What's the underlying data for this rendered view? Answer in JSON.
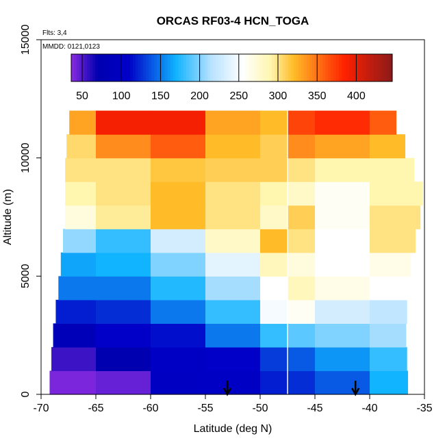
{
  "chart_data": {
    "type": "heatmap",
    "title": "ORCAS RF03-4 HCN_TOGA",
    "notes": [
      "Flts: 3,4",
      "MMDD: 0121,0123"
    ],
    "xlabel": "Latitude (deg N)",
    "ylabel": "Altitude (m)",
    "xlim": [
      -70,
      -35
    ],
    "ylim": [
      0,
      15000
    ],
    "x_ticks": [
      -70,
      -65,
      -60,
      -55,
      -50,
      -45,
      -40,
      -35
    ],
    "y_ticks": [
      0,
      5000,
      10000,
      15000
    ],
    "colorbar": {
      "range": [
        36,
        446
      ],
      "ticks": [
        50,
        100,
        150,
        200,
        250,
        300,
        350,
        400
      ],
      "stops": [
        {
          "v": 36,
          "color": "#8b2be2"
        },
        {
          "v": 70,
          "color": "#0000b0"
        },
        {
          "v": 110,
          "color": "#0000c8"
        },
        {
          "v": 170,
          "color": "#10b4ff"
        },
        {
          "v": 215,
          "color": "#b8e2ff"
        },
        {
          "v": 255,
          "color": "#ffffff"
        },
        {
          "v": 290,
          "color": "#fff6b0"
        },
        {
          "v": 320,
          "color": "#ffbc28"
        },
        {
          "v": 385,
          "color": "#ff2000"
        },
        {
          "v": 446,
          "color": "#8b1a1a"
        }
      ]
    },
    "vertical_line_lat": -47.5,
    "arrows_lat": [
      -53,
      -41.3
    ],
    "grid_lat_edges": [
      -70,
      -65,
      -60,
      -55,
      -50,
      -47.5,
      -45,
      -40,
      -35
    ],
    "grid_alt_edges": [
      0,
      1000,
      2000,
      3000,
      4000,
      5000,
      6000,
      7000,
      8000,
      9000,
      10000,
      11000,
      12000
    ],
    "grid_values": [
      [
        40,
        45,
        100,
        105,
        120,
        125,
        140,
        170
      ],
      [
        55,
        70,
        105,
        110,
        130,
        140,
        160,
        180
      ],
      [
        85,
        110,
        115,
        150,
        180,
        190,
        200,
        210
      ],
      [
        120,
        125,
        150,
        180,
        250,
        260,
        230,
        220
      ],
      [
        150,
        150,
        175,
        210,
        255,
        285,
        265,
        255
      ],
      [
        165,
        170,
        200,
        240,
        285,
        270,
        255,
        265
      ],
      [
        205,
        180,
        230,
        280,
        320,
        300,
        255,
        300
      ],
      [
        270,
        295,
        320,
        300,
        280,
        310,
        260,
        300
      ],
      [
        290,
        300,
        320,
        300,
        290,
        280,
        260,
        290
      ],
      [
        300,
        300,
        315,
        310,
        310,
        300,
        290,
        290
      ],
      [
        305,
        340,
        360,
        320,
        310,
        340,
        330,
        320
      ],
      [
        330,
        390,
        390,
        330,
        320,
        370,
        380,
        360
      ]
    ],
    "right_edge_alt": [
      {
        "alt": 0,
        "lat": -36.5
      },
      {
        "alt": 2500,
        "lat": -36.7
      },
      {
        "alt": 5000,
        "lat": -36.5
      },
      {
        "alt": 7500,
        "lat": -35.4
      },
      {
        "alt": 8300,
        "lat": -35.0
      },
      {
        "alt": 12000,
        "lat": -38.0
      }
    ],
    "left_edge_alt": [
      {
        "alt": 0,
        "lat": -69.3
      },
      {
        "alt": 2500,
        "lat": -68.9
      },
      {
        "alt": 5000,
        "lat": -68.3
      },
      {
        "alt": 7500,
        "lat": -67.8
      },
      {
        "alt": 10000,
        "lat": -67.8
      },
      {
        "alt": 12000,
        "lat": -67.3
      }
    ]
  }
}
